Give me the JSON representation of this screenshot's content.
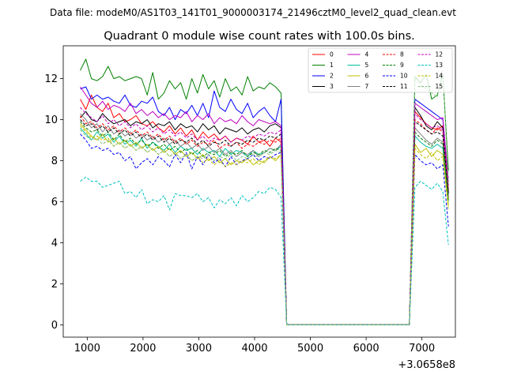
{
  "figure": {
    "suptitle": "Data file: modeM0/AS1T03_141T01_9000003174_21496cztM0_level2_quad_clean.evt",
    "background": "#ffffff"
  },
  "chart_data": {
    "type": "line",
    "title": "Quadrant 0 module wise count rates with 100.0s bins.",
    "xlabel": "",
    "ylabel": "",
    "x_offset_label": "+3.0658e8",
    "x_offset": 306580000,
    "xlim": [
      570,
      7600
    ],
    "ylim": [
      -0.6,
      13.6
    ],
    "xticks": [
      1000,
      2000,
      3000,
      4000,
      5000,
      6000,
      7000
    ],
    "yticks": [
      0,
      2,
      4,
      6,
      8,
      10,
      12
    ],
    "grid": false,
    "legend": {
      "placement": "top-right",
      "columns": 4
    },
    "x": [
      875,
      975,
      1075,
      1175,
      1275,
      1375,
      1475,
      1575,
      1675,
      1775,
      1875,
      1975,
      2075,
      2175,
      2275,
      2375,
      2475,
      2575,
      2675,
      2775,
      2875,
      2975,
      3075,
      3175,
      3275,
      3375,
      3475,
      3575,
      3675,
      3775,
      3875,
      3975,
      4075,
      4175,
      4275,
      4375,
      4475,
      4575,
      4675,
      4775,
      4875,
      4975,
      5075,
      5175,
      5275,
      5375,
      5475,
      5575,
      5675,
      5775,
      5875,
      5975,
      6075,
      6175,
      6275,
      6375,
      6475,
      6575,
      6675,
      6775,
      6875,
      6975,
      7075,
      7175,
      7275,
      7375,
      7475
    ],
    "gap_segment": {
      "x_start": 4675,
      "x_end": 6575
    },
    "series": [
      {
        "name": "0",
        "color": "#ff0000",
        "dash": "solid",
        "pre": [
          11.0,
          10.5,
          11.2,
          10.6,
          10.4,
          10.8,
          10.1,
          10.3,
          9.9,
          10.0,
          10.2,
          9.8,
          9.7,
          9.9,
          9.6,
          9.4,
          9.7,
          9.3,
          9.6,
          9.2,
          9.5,
          9.0,
          9.4,
          9.1,
          9.3,
          9.0,
          9.2,
          8.9,
          9.1,
          9.0,
          8.8,
          9.2,
          8.9,
          9.0,
          8.7,
          9.1,
          8.9
        ],
        "post": [
          10.4,
          10.1,
          9.8,
          9.6,
          9.5,
          9.7,
          6.2
        ]
      },
      {
        "name": "1",
        "color": "#008000",
        "dash": "solid",
        "pre": [
          12.4,
          12.95,
          12.0,
          11.9,
          12.1,
          12.6,
          12.0,
          12.1,
          11.9,
          12.0,
          12.1,
          12.0,
          11.2,
          12.3,
          11.0,
          11.3,
          11.9,
          11.5,
          11.8,
          11.0,
          12.0,
          11.3,
          12.2,
          11.5,
          11.9,
          11.1,
          12.0,
          11.4,
          11.6,
          11.2,
          12.1,
          11.4,
          11.6,
          11.5,
          11.8,
          11.6,
          11.3
        ],
        "post": [
          12.1,
          11.8,
          12.2,
          11.0,
          11.2,
          12.2,
          7.5
        ]
      },
      {
        "name": "2",
        "color": "#0000ff",
        "dash": "solid",
        "pre": [
          11.5,
          11.6,
          11.0,
          11.2,
          11.0,
          11.1,
          10.9,
          10.8,
          11.2,
          10.7,
          10.6,
          10.9,
          10.8,
          11.1,
          10.4,
          10.2,
          10.6,
          10.0,
          10.5,
          10.3,
          10.7,
          10.2,
          10.8,
          10.1,
          11.4,
          10.6,
          10.4,
          11.0,
          10.5,
          10.3,
          10.8,
          10.1,
          10.4,
          10.6,
          10.2,
          9.9,
          11.0
        ],
        "post": [
          11.0,
          10.8,
          10.6,
          10.4,
          10.2,
          10.0,
          7.0
        ]
      },
      {
        "name": "3",
        "color": "#000000",
        "dash": "solid",
        "pre": [
          10.1,
          10.4,
          10.0,
          9.9,
          10.3,
          10.0,
          9.8,
          9.9,
          10.0,
          9.7,
          9.9,
          9.8,
          10.0,
          9.6,
          9.8,
          9.7,
          9.9,
          9.5,
          9.8,
          9.6,
          9.7,
          9.4,
          9.8,
          9.5,
          9.7,
          9.3,
          9.6,
          9.5,
          9.4,
          9.6,
          9.3,
          9.5,
          9.6,
          9.4,
          9.7,
          9.8,
          9.6
        ],
        "post": [
          10.6,
          10.2,
          9.7,
          9.5,
          9.9,
          9.6,
          6.5
        ]
      },
      {
        "name": "4",
        "color": "#bf00bf",
        "dash": "solid",
        "pre": [
          11.6,
          11.2,
          10.8,
          10.6,
          10.9,
          10.5,
          10.7,
          10.6,
          10.4,
          10.8,
          10.3,
          10.5,
          10.2,
          10.4,
          10.1,
          10.3,
          10.0,
          10.2,
          10.1,
          10.4,
          9.9,
          10.2,
          10.0,
          10.3,
          9.8,
          10.1,
          9.9,
          10.0,
          9.8,
          10.2,
          9.9,
          9.7,
          10.0,
          9.9,
          9.8,
          9.9,
          9.7
        ],
        "post": [
          10.8,
          10.6,
          10.4,
          10.2,
          10.0,
          10.1,
          7.0
        ]
      },
      {
        "name": "5",
        "color": "#00bfa0",
        "dash": "solid",
        "pre": [
          9.6,
          9.3,
          9.0,
          9.4,
          9.1,
          9.3,
          8.9,
          9.2,
          8.8,
          9.0,
          8.7,
          9.1,
          8.6,
          8.9,
          8.7,
          8.5,
          8.8,
          8.4,
          8.7,
          8.5,
          8.6,
          8.3,
          8.6,
          8.4,
          8.5,
          8.2,
          8.6,
          8.3,
          8.5,
          8.4,
          8.2,
          8.5,
          8.3,
          8.4,
          8.6,
          8.5,
          8.7
        ],
        "post": [
          9.2,
          8.9,
          8.7,
          8.6,
          8.8,
          8.6,
          6.0
        ]
      },
      {
        "name": "6",
        "color": "#bfbf00",
        "dash": "solid",
        "pre": [
          9.8,
          9.5,
          9.2,
          9.0,
          9.3,
          8.9,
          9.1,
          8.8,
          9.0,
          8.7,
          8.9,
          8.6,
          8.8,
          8.5,
          8.7,
          8.4,
          8.6,
          8.3,
          8.5,
          8.2,
          8.4,
          8.1,
          8.3,
          8.0,
          8.2,
          7.9,
          8.1,
          7.8,
          8.0,
          7.9,
          8.1,
          7.8,
          8.0,
          7.9,
          8.2,
          8.0,
          8.3
        ],
        "post": [
          8.8,
          8.4,
          8.6,
          8.2,
          8.5,
          8.3,
          5.8
        ]
      },
      {
        "name": "7",
        "color": "#808080",
        "dash": "solid",
        "pre": [
          10.3,
          10.0,
          9.6,
          9.8,
          9.4,
          9.7,
          9.3,
          9.5,
          9.2,
          9.4,
          9.1,
          9.3,
          9.0,
          9.2,
          8.9,
          9.1,
          8.8,
          9.0,
          8.7,
          8.9,
          8.6,
          8.8,
          8.5,
          8.7,
          8.4,
          8.6,
          8.3,
          8.5,
          8.2,
          8.4,
          8.3,
          8.5,
          8.2,
          8.4,
          8.6,
          8.5,
          8.8
        ],
        "post": [
          9.6,
          9.3,
          9.0,
          8.8,
          9.1,
          8.9,
          6.3
        ]
      },
      {
        "name": "8",
        "color": "#ff0000",
        "dash": "dashed",
        "pre": [
          10.2,
          9.8,
          9.9,
          9.6,
          9.8,
          9.5,
          9.7,
          9.4,
          9.6,
          9.3,
          9.5,
          9.2,
          9.4,
          9.1,
          9.3,
          9.0,
          9.2,
          8.9,
          9.1,
          8.8,
          9.0,
          8.7,
          8.9,
          8.8,
          9.0,
          8.6,
          8.8,
          8.7,
          8.9,
          8.6,
          8.8,
          8.7,
          8.9,
          8.8,
          9.0,
          8.9,
          9.1
        ],
        "post": [
          10.0,
          9.8,
          9.5,
          9.3,
          9.6,
          9.4,
          6.6
        ]
      },
      {
        "name": "9",
        "color": "#008000",
        "dash": "dashed",
        "pre": [
          9.9,
          9.6,
          9.4,
          9.5,
          9.2,
          9.4,
          9.0,
          9.3,
          8.9,
          9.1,
          8.8,
          9.0,
          8.7,
          8.9,
          8.6,
          8.8,
          8.5,
          8.7,
          8.4,
          8.6,
          8.3,
          8.5,
          8.2,
          8.4,
          8.3,
          8.5,
          8.2,
          8.4,
          8.3,
          8.5,
          8.2,
          8.4,
          8.3,
          8.5,
          8.4,
          8.6,
          8.5
        ],
        "post": [
          9.4,
          9.1,
          8.9,
          8.7,
          9.0,
          8.8,
          6.1
        ]
      },
      {
        "name": "10",
        "color": "#0000ff",
        "dash": "dashed",
        "pre": [
          9.3,
          9.0,
          8.6,
          8.7,
          8.5,
          8.6,
          8.3,
          8.4,
          8.0,
          8.2,
          7.6,
          7.9,
          8.1,
          7.8,
          8.2,
          8.0,
          7.7,
          8.3,
          7.9,
          8.4,
          7.6,
          8.2,
          7.8,
          8.3,
          7.9,
          8.1,
          7.7,
          8.2,
          7.8,
          8.0,
          8.1,
          8.3,
          8.0,
          8.2,
          8.1,
          8.3,
          8.4
        ],
        "post": [
          8.3,
          8.0,
          7.8,
          7.9,
          7.6,
          7.8,
          4.8
        ]
      },
      {
        "name": "11",
        "color": "#000000",
        "dash": "dashed",
        "pre": [
          10.0,
          9.7,
          9.8,
          9.5,
          9.7,
          9.4,
          9.6,
          9.3,
          9.5,
          9.2,
          9.4,
          9.1,
          9.3,
          9.0,
          9.2,
          8.9,
          9.1,
          8.8,
          9.0,
          8.9,
          9.1,
          8.8,
          9.0,
          8.7,
          8.9,
          8.8,
          9.0,
          8.7,
          8.9,
          8.8,
          9.0,
          8.9,
          9.1,
          9.0,
          9.2,
          9.1,
          9.3
        ],
        "post": [
          9.9,
          9.7,
          9.5,
          9.3,
          9.4,
          9.2,
          6.4
        ]
      },
      {
        "name": "12",
        "color": "#bf00bf",
        "dash": "dashed",
        "pre": [
          10.6,
          10.3,
          10.1,
          9.9,
          10.2,
          9.8,
          10.0,
          9.7,
          9.9,
          9.6,
          9.8,
          9.5,
          9.7,
          9.4,
          9.6,
          9.3,
          9.5,
          9.2,
          9.4,
          9.1,
          9.3,
          9.0,
          9.2,
          8.9,
          9.1,
          9.0,
          9.2,
          8.9,
          9.1,
          9.0,
          9.2,
          9.1,
          9.3,
          9.2,
          9.4,
          9.3,
          9.5
        ],
        "post": [
          10.3,
          10.0,
          9.8,
          9.6,
          9.7,
          9.5,
          6.8
        ]
      },
      {
        "name": "13",
        "color": "#00bfbf",
        "dash": "dashed",
        "pre": [
          7.0,
          7.2,
          7.0,
          7.0,
          6.7,
          6.8,
          6.9,
          7.0,
          6.4,
          6.5,
          6.2,
          6.6,
          5.9,
          6.1,
          6.0,
          6.3,
          5.6,
          6.4,
          6.3,
          6.3,
          6.2,
          6.4,
          6.0,
          6.2,
          5.7,
          6.1,
          5.9,
          6.2,
          5.8,
          6.3,
          6.0,
          6.2,
          6.5,
          6.4,
          6.7,
          6.6,
          6.2
        ],
        "post": [
          6.7,
          7.0,
          6.8,
          6.6,
          6.9,
          6.5,
          3.9
        ]
      },
      {
        "name": "14",
        "color": "#bfbf00",
        "dash": "dashed",
        "pre": [
          9.7,
          9.4,
          9.1,
          9.2,
          9.0,
          9.1,
          8.7,
          8.9,
          8.6,
          8.8,
          8.5,
          8.7,
          8.4,
          8.6,
          8.3,
          8.5,
          8.2,
          8.4,
          8.1,
          8.3,
          8.0,
          8.2,
          7.9,
          8.1,
          7.8,
          8.0,
          7.7,
          7.9,
          7.8,
          8.0,
          7.9,
          8.1,
          7.8,
          8.0,
          8.2,
          8.1,
          8.3
        ],
        "post": [
          8.6,
          8.3,
          8.1,
          8.4,
          8.0,
          8.2,
          5.6
        ]
      },
      {
        "name": "15",
        "color": "#80c080",
        "dash": "dashed",
        "pre": [
          9.5,
          9.2,
          9.0,
          9.1,
          8.8,
          9.0,
          8.7,
          8.9,
          8.6,
          8.8,
          8.5,
          8.7,
          8.4,
          8.6,
          8.3,
          8.5,
          8.2,
          8.4,
          8.1,
          8.3,
          8.0,
          8.2,
          8.1,
          8.3,
          8.0,
          8.2,
          8.1,
          8.3,
          8.0,
          8.2,
          8.1,
          8.3,
          8.2,
          8.4,
          8.3,
          8.5,
          8.4
        ],
        "post": [
          12.0,
          11.7,
          11.5,
          11.3,
          11.1,
          12.4,
          6.9
        ]
      }
    ]
  }
}
